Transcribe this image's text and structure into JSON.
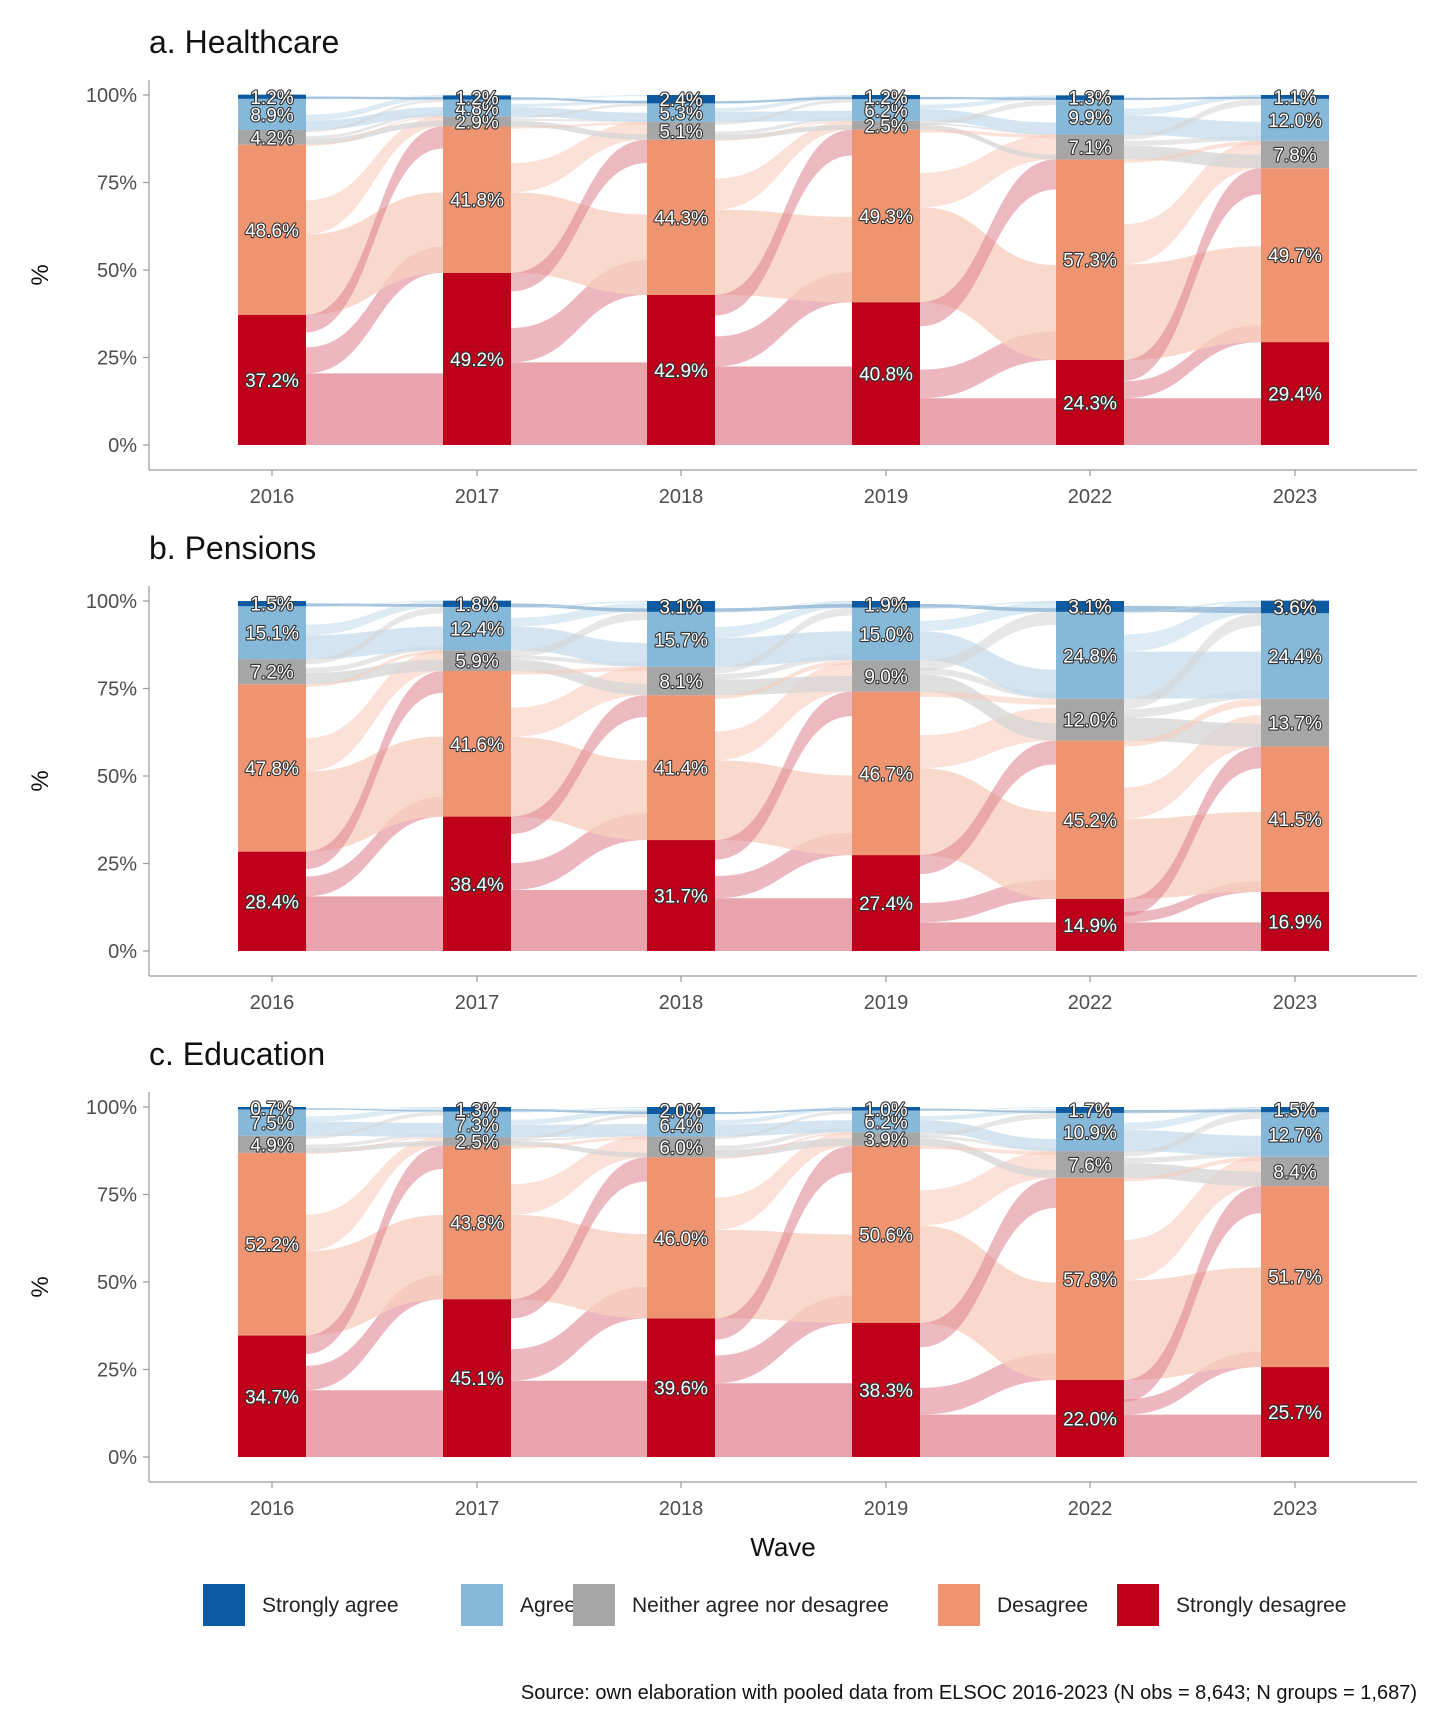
{
  "colors": {
    "Strongly agree": "#0b5aa2",
    "Agree": "#86b8da",
    "Neither agree nor desagree": "#a6a6a6",
    "Desagree": "#ef9470",
    "Strongly desagree": "#be001b"
  },
  "chart_data": [
    {
      "type": "bar",
      "subtype": "stacked-alluvial",
      "title": "a. Healthcare",
      "xlabel": "",
      "ylabel": "%",
      "ylim": [
        0,
        100
      ],
      "yticks": [
        "0%",
        "25%",
        "50%",
        "75%",
        "100%"
      ],
      "categories": [
        "2016",
        "2017",
        "2018",
        "2019",
        "2022",
        "2023"
      ],
      "series": [
        {
          "name": "Strongly desagree",
          "values": [
            37.2,
            49.2,
            42.9,
            40.8,
            24.3,
            29.4
          ]
        },
        {
          "name": "Desagree",
          "values": [
            48.6,
            41.8,
            44.3,
            49.3,
            57.3,
            49.7
          ]
        },
        {
          "name": "Neither agree nor desagree",
          "values": [
            4.2,
            2.9,
            5.1,
            2.5,
            7.1,
            7.8
          ]
        },
        {
          "name": "Agree",
          "values": [
            8.9,
            4.8,
            5.3,
            6.2,
            9.9,
            12.0
          ]
        },
        {
          "name": "Strongly agree",
          "values": [
            1.2,
            1.2,
            2.4,
            1.2,
            1.3,
            1.1
          ]
        }
      ],
      "label_text": [
        [
          "37.2%",
          "49.2%",
          "42.9%",
          "40.8%",
          "24.3%",
          "29.4%"
        ],
        [
          "48.6%",
          "41.8%",
          "44.3%",
          "49.3%",
          "57.3%",
          "49.7%"
        ],
        [
          "4.2%",
          "2.9%",
          "5.1%",
          "2.5%",
          "7.1%",
          "7.8%"
        ],
        [
          "8.9%",
          "4.8%",
          "5.3%",
          "6.2%",
          "9.9%",
          "12.0%"
        ],
        [
          "1.2%",
          "1.2%",
          "2.4%",
          "1.2%",
          "1.3%",
          "1.1%"
        ]
      ]
    },
    {
      "type": "bar",
      "subtype": "stacked-alluvial",
      "title": "b. Pensions",
      "xlabel": "",
      "ylabel": "%",
      "ylim": [
        0,
        100
      ],
      "yticks": [
        "0%",
        "25%",
        "50%",
        "75%",
        "100%"
      ],
      "categories": [
        "2016",
        "2017",
        "2018",
        "2019",
        "2022",
        "2023"
      ],
      "series": [
        {
          "name": "Strongly desagree",
          "values": [
            28.4,
            38.4,
            31.7,
            27.4,
            14.9,
            16.9
          ]
        },
        {
          "name": "Desagree",
          "values": [
            47.8,
            41.6,
            41.4,
            46.7,
            45.2,
            41.5
          ]
        },
        {
          "name": "Neither agree nor desagree",
          "values": [
            7.2,
            5.9,
            8.1,
            9.0,
            12.0,
            13.7
          ]
        },
        {
          "name": "Agree",
          "values": [
            15.1,
            12.4,
            15.7,
            15.0,
            24.8,
            24.4
          ]
        },
        {
          "name": "Strongly agree",
          "values": [
            1.5,
            1.8,
            3.1,
            1.9,
            3.1,
            3.6
          ]
        }
      ],
      "label_text": [
        [
          "28.4%",
          "38.4%",
          "31.7%",
          "27.4%",
          "14.9%",
          "16.9%"
        ],
        [
          "47.8%",
          "41.6%",
          "41.4%",
          "46.7%",
          "45.2%",
          "41.5%"
        ],
        [
          "7.2%",
          "5.9%",
          "8.1%",
          "9.0%",
          "12.0%",
          "13.7%"
        ],
        [
          "15.1%",
          "12.4%",
          "15.7%",
          "15.0%",
          "24.8%",
          "24.4%"
        ],
        [
          "1.5%",
          "1.8%",
          "3.1%",
          "1.9%",
          "3.1%",
          "3.6%"
        ]
      ]
    },
    {
      "type": "bar",
      "subtype": "stacked-alluvial",
      "title": "c. Education",
      "xlabel": "Wave",
      "ylabel": "%",
      "ylim": [
        0,
        100
      ],
      "yticks": [
        "0%",
        "25%",
        "50%",
        "75%",
        "100%"
      ],
      "categories": [
        "2016",
        "2017",
        "2018",
        "2019",
        "2022",
        "2023"
      ],
      "series": [
        {
          "name": "Strongly desagree",
          "values": [
            34.7,
            45.1,
            39.6,
            38.3,
            22.0,
            25.7
          ]
        },
        {
          "name": "Desagree",
          "values": [
            52.2,
            43.8,
            46.0,
            50.6,
            57.8,
            51.7
          ]
        },
        {
          "name": "Neither agree nor desagree",
          "values": [
            4.9,
            2.5,
            6.0,
            3.9,
            7.6,
            8.4
          ]
        },
        {
          "name": "Agree",
          "values": [
            7.5,
            7.3,
            6.4,
            6.2,
            10.9,
            12.7
          ]
        },
        {
          "name": "Strongly agree",
          "values": [
            0.7,
            1.3,
            2.0,
            1.0,
            1.7,
            1.5
          ]
        }
      ],
      "label_text": [
        [
          "34.7%",
          "45.1%",
          "39.6%",
          "38.3%",
          "22.0%",
          "25.7%"
        ],
        [
          "52.2%",
          "43.8%",
          "46.0%",
          "50.6%",
          "57.8%",
          "51.7%"
        ],
        [
          "4.9%",
          "2.5%",
          "6.0%",
          "3.9%",
          "7.6%",
          "8.4%"
        ],
        [
          "7.5%",
          "7.3%",
          "6.4%",
          "6.2%",
          "10.9%",
          "12.7%"
        ],
        [
          "0.7%",
          "1.3%",
          "2.0%",
          "1.0%",
          "1.7%",
          "1.5%"
        ]
      ]
    }
  ],
  "legend": {
    "position": "bottom",
    "items": [
      "Strongly agree",
      "Agree",
      "Neither agree nor desagree",
      "Desagree",
      "Strongly desagree"
    ]
  },
  "caption": "Source: own elaboration with pooled data from ELSOC 2016-2023 (N obs = 8,643; N groups = 1,687)"
}
